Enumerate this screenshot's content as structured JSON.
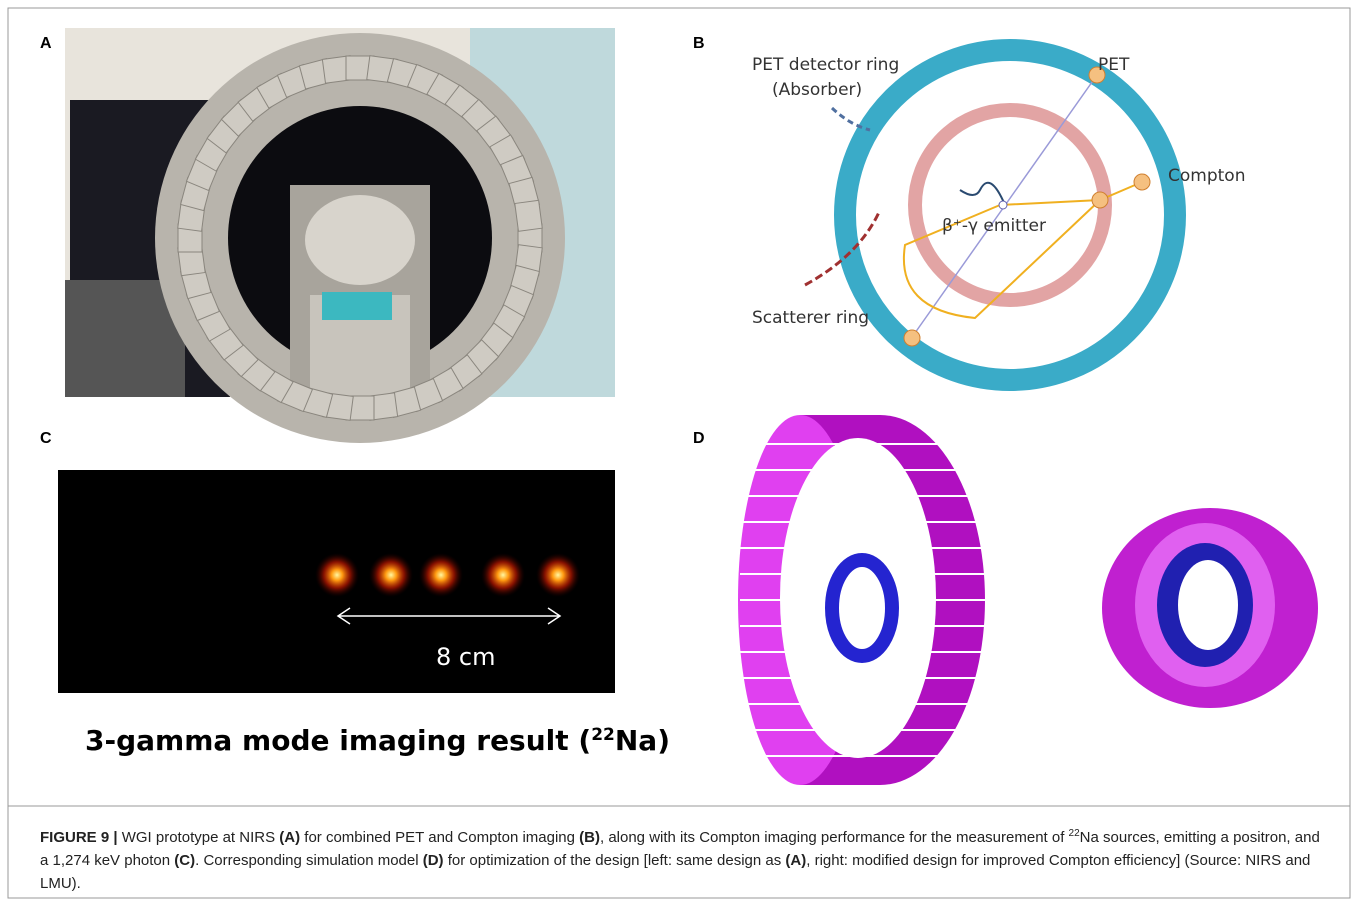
{
  "panels": {
    "a": {
      "label": "A"
    },
    "b": {
      "label": "B"
    },
    "c": {
      "label": "C"
    },
    "d": {
      "label": "D"
    }
  },
  "panel_b": {
    "detector_ring": "PET detector ring",
    "absorber": "(Absorber)",
    "pet": "PET",
    "compton": "Compton",
    "emitter": "β⁺-γ emitter",
    "scatterer": "Scatterer ring"
  },
  "panel_c": {
    "scale": "8 cm",
    "title_pre": "3-gamma mode imaging result (",
    "title_sup": "22",
    "title_post": "Na)"
  },
  "caption": {
    "parts": [
      "FIGURE 9 | ",
      "WGI prototype at NIRS ",
      "(A)",
      " for combined PET and Compton imaging ",
      "(B)",
      ", along with its Compton imaging performance for the measurement of ",
      "22",
      "Na sources, emitting a positron, and a 1,274 keV photon ",
      "(C)",
      ". Corresponding simulation model ",
      "(D)",
      " for optimization of the design [left: same design as ",
      "(A)",
      ", right: modified design for improved Compton efficiency] (Source: NIRS and LMU)."
    ]
  }
}
